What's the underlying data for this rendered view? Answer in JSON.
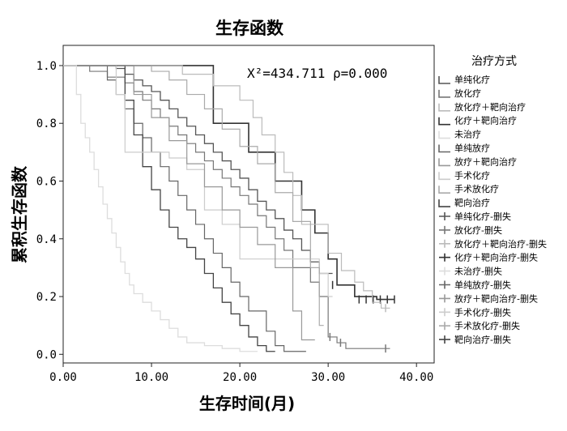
{
  "chart_data": {
    "type": "line",
    "title": "生存函数",
    "xlabel": "生存时间(月)",
    "ylabel": "累积生存函数",
    "xlim": [
      0,
      42
    ],
    "ylim": [
      -0.03,
      1.07
    ],
    "xticks": [
      "0.00",
      "10.00",
      "20.00",
      "30.00",
      "40.00"
    ],
    "xtick_values": [
      0,
      10,
      20,
      30,
      40
    ],
    "yticks": [
      "0.0",
      "0.2",
      "0.4",
      "0.6",
      "0.8",
      "1.0"
    ],
    "ytick_values": [
      0,
      0.2,
      0.4,
      0.6,
      0.8,
      1.0
    ],
    "annotation": "X²=434.711  ρ=0.000",
    "grid": false,
    "legend_position": "right",
    "legend_title": "治疗方式",
    "legend": [
      {
        "label": "单纯化疗",
        "kind": "line",
        "color": "#555555"
      },
      {
        "label": "放化疗",
        "kind": "line",
        "color": "#777777"
      },
      {
        "label": "放化疗＋靶向治疗",
        "kind": "line",
        "color": "#bbbbbb"
      },
      {
        "label": "化疗＋靶向治疗",
        "kind": "line",
        "color": "#333333"
      },
      {
        "label": "未治疗",
        "kind": "line",
        "color": "#dddddd"
      },
      {
        "label": "单纯放疗",
        "kind": "line",
        "color": "#666666"
      },
      {
        "label": "放疗＋靶向治疗",
        "kind": "line",
        "color": "#999999"
      },
      {
        "label": "手术化疗",
        "kind": "line",
        "color": "#cccccc"
      },
      {
        "label": "手术放化疗",
        "kind": "line",
        "color": "#aaaaaa"
      },
      {
        "label": "靶向治疗",
        "kind": "line",
        "color": "#444444"
      },
      {
        "label": "单纯化疗-删失",
        "kind": "censor",
        "color": "#555555"
      },
      {
        "label": "放化疗-删失",
        "kind": "censor",
        "color": "#777777"
      },
      {
        "label": "放化疗＋靶向治疗-删失",
        "kind": "censor",
        "color": "#bbbbbb"
      },
      {
        "label": "化疗＋靶向治疗-删失",
        "kind": "censor",
        "color": "#333333"
      },
      {
        "label": "未治疗-删失",
        "kind": "censor",
        "color": "#dddddd"
      },
      {
        "label": "单纯放疗-删失",
        "kind": "censor",
        "color": "#666666"
      },
      {
        "label": "放疗＋靶向治疗-删失",
        "kind": "censor",
        "color": "#999999"
      },
      {
        "label": "手术化疗-删失",
        "kind": "censor",
        "color": "#cccccc"
      },
      {
        "label": "手术放化疗-删失",
        "kind": "censor",
        "color": "#aaaaaa"
      },
      {
        "label": "靶向治疗-删失",
        "kind": "censor",
        "color": "#444444"
      }
    ],
    "series": [
      {
        "name": "化疗＋靶向治疗",
        "color": "#333333",
        "width": 1.6,
        "steps": [
          [
            0,
            1.0
          ],
          [
            17,
            0.8
          ],
          [
            21,
            0.7
          ],
          [
            24,
            0.6
          ],
          [
            27,
            0.5
          ],
          [
            28.5,
            0.42
          ],
          [
            30,
            0.33
          ],
          [
            31,
            0.24
          ],
          [
            33,
            0.2
          ],
          [
            35.5,
            0.19
          ]
        ],
        "end": 37.5,
        "censor": [
          [
            30.5,
            0.24
          ],
          [
            33.5,
            0.19
          ],
          [
            34.3,
            0.19
          ],
          [
            35.1,
            0.19
          ],
          [
            35.9,
            0.19
          ],
          [
            36.7,
            0.19
          ],
          [
            37.5,
            0.19
          ]
        ]
      },
      {
        "name": "放化疗＋靶向治疗",
        "color": "#bbbbbb",
        "width": 1.2,
        "steps": [
          [
            0,
            1.0
          ],
          [
            13.5,
            0.97
          ],
          [
            17,
            0.93
          ],
          [
            20,
            0.88
          ],
          [
            21.5,
            0.82
          ],
          [
            22.5,
            0.76
          ],
          [
            24,
            0.7
          ],
          [
            25,
            0.63
          ],
          [
            26,
            0.55
          ],
          [
            27,
            0.45
          ],
          [
            30,
            0.35
          ],
          [
            31.5,
            0.29
          ],
          [
            33,
            0.25
          ],
          [
            34,
            0.22
          ],
          [
            35,
            0.18
          ],
          [
            36,
            0.16
          ]
        ],
        "end": 37,
        "censor": [
          [
            36.5,
            0.16
          ]
        ]
      },
      {
        "name": "单纯化疗",
        "color": "#555555",
        "width": 1.3,
        "steps": [
          [
            0,
            1.0
          ],
          [
            6,
            0.99
          ],
          [
            7,
            0.97
          ],
          [
            8,
            0.95
          ],
          [
            9,
            0.93
          ],
          [
            10,
            0.91
          ],
          [
            11,
            0.88
          ],
          [
            12,
            0.85
          ],
          [
            13,
            0.82
          ],
          [
            14,
            0.79
          ],
          [
            15,
            0.76
          ],
          [
            16,
            0.73
          ],
          [
            17,
            0.7
          ],
          [
            18,
            0.67
          ],
          [
            19,
            0.64
          ],
          [
            20,
            0.61
          ],
          [
            21,
            0.57
          ],
          [
            22,
            0.53
          ],
          [
            23,
            0.5
          ],
          [
            24,
            0.47
          ],
          [
            25,
            0.43
          ],
          [
            26,
            0.4
          ],
          [
            27,
            0.36
          ],
          [
            28,
            0.32
          ],
          [
            29,
            0.28
          ]
        ],
        "end": 30.5,
        "censor": []
      },
      {
        "name": "放化疗",
        "color": "#777777",
        "width": 1.2,
        "steps": [
          [
            0,
            1.0
          ],
          [
            3,
            0.98
          ],
          [
            5,
            0.96
          ],
          [
            7,
            0.94
          ],
          [
            8,
            0.91
          ],
          [
            9,
            0.88
          ],
          [
            10,
            0.85
          ],
          [
            11,
            0.82
          ],
          [
            12,
            0.79
          ],
          [
            13,
            0.76
          ],
          [
            14,
            0.73
          ],
          [
            15,
            0.7
          ],
          [
            16,
            0.67
          ],
          [
            17,
            0.64
          ],
          [
            18,
            0.61
          ],
          [
            19,
            0.58
          ],
          [
            20,
            0.55
          ],
          [
            21,
            0.52
          ],
          [
            22,
            0.48
          ],
          [
            23,
            0.44
          ],
          [
            24,
            0.4
          ],
          [
            25,
            0.36
          ],
          [
            26,
            0.3
          ],
          [
            28,
            0.25
          ],
          [
            29,
            0.2
          ],
          [
            30,
            0.06
          ],
          [
            31,
            0.04
          ],
          [
            32,
            0.02
          ]
        ],
        "end": 37,
        "censor": [
          [
            30.2,
            0.06
          ],
          [
            31.4,
            0.04
          ],
          [
            36.5,
            0.02
          ]
        ]
      },
      {
        "name": "单纯放疗",
        "color": "#666666",
        "width": 1.2,
        "steps": [
          [
            0,
            1.0
          ],
          [
            5,
            0.95
          ],
          [
            6,
            0.9
          ],
          [
            7,
            0.85
          ],
          [
            8,
            0.8
          ],
          [
            9,
            0.75
          ],
          [
            10,
            0.7
          ],
          [
            11,
            0.65
          ],
          [
            12,
            0.6
          ],
          [
            13,
            0.55
          ],
          [
            14,
            0.5
          ],
          [
            15,
            0.45
          ],
          [
            16,
            0.4
          ],
          [
            17,
            0.35
          ],
          [
            18,
            0.3
          ],
          [
            19,
            0.25
          ],
          [
            20,
            0.2
          ],
          [
            21,
            0.15
          ],
          [
            23,
            0.08
          ],
          [
            24,
            0.03
          ],
          [
            25,
            0.01
          ]
        ],
        "end": 27.5,
        "censor": []
      },
      {
        "name": "靶向治疗",
        "color": "#444444",
        "width": 1.3,
        "steps": [
          [
            0,
            1.0
          ],
          [
            7,
            0.88
          ],
          [
            8,
            0.76
          ],
          [
            9,
            0.65
          ],
          [
            10,
            0.57
          ],
          [
            11,
            0.5
          ],
          [
            12,
            0.44
          ],
          [
            13,
            0.4
          ],
          [
            14,
            0.37
          ],
          [
            15,
            0.33
          ],
          [
            16,
            0.28
          ],
          [
            17,
            0.23
          ],
          [
            18,
            0.18
          ],
          [
            19,
            0.14
          ],
          [
            20,
            0.1
          ],
          [
            21,
            0.06
          ],
          [
            22,
            0.03
          ],
          [
            23,
            0.01
          ]
        ],
        "end": 24,
        "censor": []
      },
      {
        "name": "手术化疗",
        "color": "#cccccc",
        "width": 1.2,
        "steps": [
          [
            0,
            1.0
          ],
          [
            6,
            0.9
          ],
          [
            7,
            0.7
          ],
          [
            12,
            0.68
          ],
          [
            14,
            0.64
          ],
          [
            16,
            0.5
          ],
          [
            18,
            0.45
          ],
          [
            20,
            0.33
          ],
          [
            29,
            0.28
          ],
          [
            30,
            0.2
          ]
        ],
        "end": 30.5,
        "censor": []
      },
      {
        "name": "手术放化疗",
        "color": "#aaaaaa",
        "width": 1.2,
        "steps": [
          [
            0,
            1.0
          ],
          [
            10,
            0.98
          ],
          [
            12,
            0.95
          ],
          [
            14,
            0.9
          ],
          [
            16,
            0.85
          ],
          [
            18,
            0.78
          ],
          [
            20,
            0.72
          ],
          [
            22,
            0.66
          ],
          [
            24,
            0.56
          ],
          [
            26,
            0.46
          ],
          [
            28,
            0.3
          ],
          [
            29,
            0.1
          ]
        ],
        "end": 29.5,
        "censor": []
      },
      {
        "name": "放疗＋靶向治疗",
        "color": "#999999",
        "width": 1.2,
        "steps": [
          [
            0,
            1.0
          ],
          [
            8,
            0.9
          ],
          [
            10,
            0.82
          ],
          [
            12,
            0.74
          ],
          [
            14,
            0.66
          ],
          [
            16,
            0.58
          ],
          [
            18,
            0.5
          ],
          [
            20,
            0.44
          ],
          [
            22,
            0.38
          ],
          [
            24,
            0.3
          ],
          [
            26,
            0.15
          ],
          [
            27,
            0.05
          ]
        ],
        "end": 28.5,
        "censor": []
      },
      {
        "name": "未治疗",
        "color": "#dddddd",
        "width": 1.3,
        "steps": [
          [
            0,
            1.0
          ],
          [
            1.5,
            0.9
          ],
          [
            2,
            0.8
          ],
          [
            2.5,
            0.75
          ],
          [
            3,
            0.7
          ],
          [
            3.5,
            0.64
          ],
          [
            4,
            0.58
          ],
          [
            4.5,
            0.52
          ],
          [
            5,
            0.47
          ],
          [
            5.5,
            0.42
          ],
          [
            6,
            0.37
          ],
          [
            6.5,
            0.32
          ],
          [
            7,
            0.28
          ],
          [
            7.5,
            0.24
          ],
          [
            8,
            0.21
          ],
          [
            9,
            0.18
          ],
          [
            10,
            0.15
          ],
          [
            11,
            0.12
          ],
          [
            12,
            0.09
          ],
          [
            13,
            0.06
          ],
          [
            14,
            0.04
          ],
          [
            16,
            0.03
          ],
          [
            18,
            0.02
          ],
          [
            20,
            0.01
          ]
        ],
        "end": 22,
        "censor": []
      }
    ]
  }
}
